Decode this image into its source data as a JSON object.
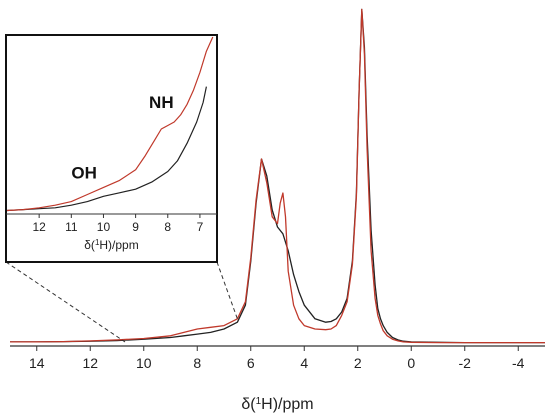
{
  "chart_data": {
    "type": "line",
    "main": {
      "xlabel_prefix": "δ(",
      "xlabel_sup": "1",
      "xlabel_suffix": "H)/ppm",
      "xlim": [
        15,
        -5
      ],
      "ylim": [
        0,
        1
      ],
      "xticks": [
        14,
        12,
        10,
        8,
        6,
        4,
        2,
        0,
        -2,
        -4
      ],
      "xtick_labels": [
        "14",
        "12",
        "10",
        "8",
        "6",
        "4",
        "2",
        "0",
        "-2",
        "-4"
      ],
      "series": [
        {
          "color": "#222222",
          "x": [
            15,
            14,
            13,
            12,
            11,
            10,
            9,
            8.5,
            8,
            7.5,
            7,
            6.5,
            6.2,
            6.0,
            5.8,
            5.6,
            5.4,
            5.2,
            5.0,
            4.8,
            4.6,
            4.4,
            4.2,
            4.0,
            3.6,
            3.2,
            3.0,
            2.8,
            2.6,
            2.4,
            2.2,
            2.05,
            1.95,
            1.85,
            1.75,
            1.65,
            1.5,
            1.35,
            1.25,
            1.15,
            1.05,
            0.9,
            0.7,
            0.5,
            0.3,
            0.0,
            -1,
            -2,
            -3,
            -4,
            -5
          ],
          "y": [
            0.012,
            0.012,
            0.013,
            0.014,
            0.016,
            0.02,
            0.025,
            0.03,
            0.035,
            0.04,
            0.05,
            0.07,
            0.12,
            0.25,
            0.42,
            0.55,
            0.5,
            0.4,
            0.35,
            0.33,
            0.28,
            0.21,
            0.16,
            0.12,
            0.08,
            0.07,
            0.072,
            0.08,
            0.1,
            0.14,
            0.25,
            0.45,
            0.75,
            0.99,
            0.88,
            0.62,
            0.34,
            0.18,
            0.11,
            0.08,
            0.06,
            0.04,
            0.025,
            0.018,
            0.014,
            0.012,
            0.011,
            0.01,
            0.01,
            0.01,
            0.01
          ]
        },
        {
          "color": "#c0392b",
          "x": [
            15,
            14,
            13,
            12,
            11,
            10,
            9,
            8.5,
            8,
            7.5,
            7,
            6.5,
            6.2,
            6.0,
            5.8,
            5.6,
            5.4,
            5.2,
            5.0,
            4.9,
            4.8,
            4.7,
            4.6,
            4.4,
            4.2,
            4.0,
            3.6,
            3.2,
            3.0,
            2.8,
            2.6,
            2.4,
            2.2,
            2.05,
            1.95,
            1.85,
            1.75,
            1.65,
            1.5,
            1.35,
            1.25,
            1.15,
            1.05,
            0.9,
            0.7,
            0.5,
            0.3,
            0.0,
            -1,
            -2,
            -3,
            -4,
            -5
          ],
          "y": [
            0.012,
            0.012,
            0.013,
            0.015,
            0.018,
            0.022,
            0.03,
            0.04,
            0.05,
            0.055,
            0.06,
            0.08,
            0.13,
            0.26,
            0.43,
            0.55,
            0.48,
            0.38,
            0.36,
            0.42,
            0.45,
            0.38,
            0.22,
            0.12,
            0.08,
            0.06,
            0.05,
            0.048,
            0.05,
            0.06,
            0.09,
            0.13,
            0.24,
            0.44,
            0.75,
            0.99,
            0.86,
            0.58,
            0.28,
            0.14,
            0.09,
            0.065,
            0.045,
            0.03,
            0.02,
            0.015,
            0.012,
            0.011,
            0.01,
            0.01,
            0.01,
            0.01,
            0.01
          ]
        }
      ]
    },
    "inset": {
      "xlabel_prefix": "δ(",
      "xlabel_sup": "1",
      "xlabel_suffix": "H)/ppm",
      "xlim": [
        13,
        6.5
      ],
      "ylim": [
        0,
        1
      ],
      "xticks": [
        12,
        11,
        10,
        9,
        8,
        7
      ],
      "xtick_labels": [
        "12",
        "11",
        "10",
        "9",
        "8",
        "7"
      ],
      "annotations": [
        {
          "text": "NH",
          "x": 8.2,
          "y": 0.6
        },
        {
          "text": "OH",
          "x": 10.6,
          "y": 0.2
        }
      ],
      "series": [
        {
          "color": "#222222",
          "x": [
            13,
            12.5,
            12,
            11.5,
            11,
            10.5,
            10,
            9.5,
            9,
            8.5,
            8,
            7.7,
            7.4,
            7.1,
            6.9,
            6.8
          ],
          "y": [
            0.02,
            0.025,
            0.03,
            0.035,
            0.05,
            0.07,
            0.1,
            0.12,
            0.14,
            0.18,
            0.24,
            0.3,
            0.4,
            0.52,
            0.63,
            0.72
          ]
        },
        {
          "color": "#c0392b",
          "x": [
            13,
            12.5,
            12,
            11.5,
            11,
            10.5,
            10,
            9.5,
            9,
            8.7,
            8.4,
            8.2,
            8.0,
            7.8,
            7.6,
            7.4,
            7.2,
            7.0,
            6.8,
            6.6
          ],
          "y": [
            0.02,
            0.025,
            0.035,
            0.05,
            0.07,
            0.11,
            0.15,
            0.19,
            0.25,
            0.33,
            0.42,
            0.48,
            0.5,
            0.52,
            0.56,
            0.62,
            0.7,
            0.8,
            0.92,
            1.0
          ]
        }
      ]
    }
  }
}
